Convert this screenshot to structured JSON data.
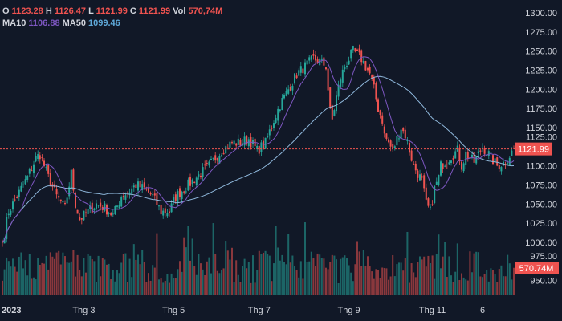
{
  "legend": {
    "o_label": "O",
    "o": "1123.28",
    "h_label": "H",
    "h": "1126.47",
    "l_label": "L",
    "l": "1121.99",
    "c_label": "C",
    "c": "1121.99",
    "vol_label": "Vol",
    "vol": "570,74M",
    "ma10_label": "MA10",
    "ma10": "1106.88",
    "ma50_label": "MA50",
    "ma50": "1099.46"
  },
  "colors": {
    "up": "#26a69a",
    "down": "#ef5350",
    "ma10": "#7e57c2",
    "ma50": "#8fb8dc",
    "bg": "#111827"
  },
  "chart_data": {
    "type": "candlestick",
    "num_candles": 246,
    "close_keypoints": [
      [
        0,
        1000
      ],
      [
        3,
        1040
      ],
      [
        7,
        1060
      ],
      [
        12,
        1085
      ],
      [
        16,
        1110
      ],
      [
        18,
        1115
      ],
      [
        22,
        1085
      ],
      [
        26,
        1060
      ],
      [
        30,
        1045
      ],
      [
        33,
        1090
      ],
      [
        35,
        1050
      ],
      [
        37,
        1030
      ],
      [
        41,
        1040
      ],
      [
        45,
        1050
      ],
      [
        49,
        1045
      ],
      [
        53,
        1035
      ],
      [
        57,
        1060
      ],
      [
        60,
        1065
      ],
      [
        64,
        1075
      ],
      [
        68,
        1070
      ],
      [
        72,
        1060
      ],
      [
        76,
        1040
      ],
      [
        80,
        1040
      ],
      [
        83,
        1060
      ],
      [
        87,
        1070
      ],
      [
        93,
        1085
      ],
      [
        99,
        1100
      ],
      [
        105,
        1120
      ],
      [
        110,
        1130
      ],
      [
        114,
        1130
      ],
      [
        118,
        1135
      ],
      [
        122,
        1120
      ],
      [
        126,
        1130
      ],
      [
        130,
        1160
      ],
      [
        133,
        1180
      ],
      [
        137,
        1200
      ],
      [
        141,
        1220
      ],
      [
        145,
        1230
      ],
      [
        149,
        1240
      ],
      [
        153,
        1235
      ],
      [
        155,
        1230
      ],
      [
        157,
        1170
      ],
      [
        158,
        1160
      ],
      [
        160,
        1190
      ],
      [
        162,
        1215
      ],
      [
        164,
        1230
      ],
      [
        168,
        1250
      ],
      [
        172,
        1240
      ],
      [
        176,
        1220
      ],
      [
        178,
        1200
      ],
      [
        180,
        1175
      ],
      [
        182,
        1160
      ],
      [
        183,
        1140
      ],
      [
        187,
        1120
      ],
      [
        191,
        1150
      ],
      [
        193,
        1140
      ],
      [
        195,
        1120
      ],
      [
        197,
        1100
      ],
      [
        199,
        1090
      ],
      [
        201,
        1080
      ],
      [
        203,
        1050
      ],
      [
        205,
        1040
      ],
      [
        207,
        1070
      ],
      [
        209,
        1085
      ],
      [
        210,
        1100
      ],
      [
        214,
        1110
      ],
      [
        218,
        1120
      ],
      [
        220,
        1100
      ],
      [
        222,
        1115
      ],
      [
        226,
        1105
      ],
      [
        230,
        1125
      ],
      [
        233,
        1115
      ],
      [
        237,
        1100
      ],
      [
        241,
        1105
      ],
      [
        245,
        1121.99
      ]
    ],
    "last_candle": {
      "open": 1123.28,
      "high": 1126.47,
      "low": 1121.99,
      "close": 1121.99,
      "volume_m": 570.74
    },
    "price_axis": {
      "ticks": [
        "1300.00",
        "1275.00",
        "1250.00",
        "1225.00",
        "1200.00",
        "1175.00",
        "1150.00",
        "1125.00",
        "1100.00",
        "1075.00",
        "1050.00",
        "1025.00",
        "1000.00",
        "975.00",
        "950.00"
      ],
      "range": [
        950,
        1300
      ]
    },
    "x_ticks": [
      {
        "label": "2023",
        "index": 4
      },
      {
        "label": "Thg 3",
        "index": 39
      },
      {
        "label": "Thg 5",
        "index": 82
      },
      {
        "label": "Thg 7",
        "index": 123
      },
      {
        "label": "Thg 9",
        "index": 166
      },
      {
        "label": "Thg 11",
        "index": 206
      },
      {
        "label": "6",
        "index": 230
      }
    ],
    "last_price_label": "1121.99",
    "last_volume_label": "570.74M",
    "indicators": [
      "MA10",
      "MA50"
    ]
  }
}
